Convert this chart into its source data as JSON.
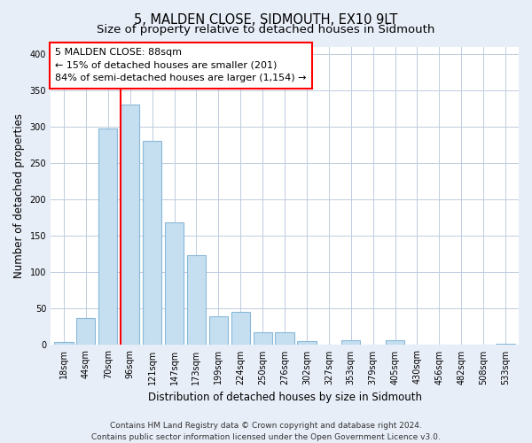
{
  "title": "5, MALDEN CLOSE, SIDMOUTH, EX10 9LT",
  "subtitle": "Size of property relative to detached houses in Sidmouth",
  "xlabel": "Distribution of detached houses by size in Sidmouth",
  "ylabel": "Number of detached properties",
  "bar_labels": [
    "18sqm",
    "44sqm",
    "70sqm",
    "96sqm",
    "121sqm",
    "147sqm",
    "173sqm",
    "199sqm",
    "224sqm",
    "250sqm",
    "276sqm",
    "302sqm",
    "327sqm",
    "353sqm",
    "379sqm",
    "405sqm",
    "430sqm",
    "456sqm",
    "482sqm",
    "508sqm",
    "533sqm"
  ],
  "bar_values": [
    4,
    37,
    297,
    330,
    280,
    169,
    123,
    40,
    46,
    17,
    18,
    5,
    0,
    6,
    0,
    7,
    0,
    0,
    0,
    0,
    2
  ],
  "bar_color": "#c5dff0",
  "bar_edge_color": "#8ab8d8",
  "ylim": [
    0,
    410
  ],
  "yticks": [
    0,
    50,
    100,
    150,
    200,
    250,
    300,
    350,
    400
  ],
  "red_line_index": 3,
  "annotation_line1": "5 MALDEN CLOSE: 88sqm",
  "annotation_line2": "← 15% of detached houses are smaller (201)",
  "annotation_line3": "84% of semi-detached houses are larger (1,154) →",
  "footer_line1": "Contains HM Land Registry data © Crown copyright and database right 2024.",
  "footer_line2": "Contains public sector information licensed under the Open Government Licence v3.0.",
  "background_color": "#e8eef8",
  "plot_bg_color": "#ffffff",
  "grid_color": "#c0cce0",
  "title_fontsize": 10.5,
  "subtitle_fontsize": 9.5,
  "tick_fontsize": 7,
  "ylabel_fontsize": 8.5,
  "xlabel_fontsize": 8.5,
  "annotation_fontsize": 8,
  "footer_fontsize": 6.5
}
